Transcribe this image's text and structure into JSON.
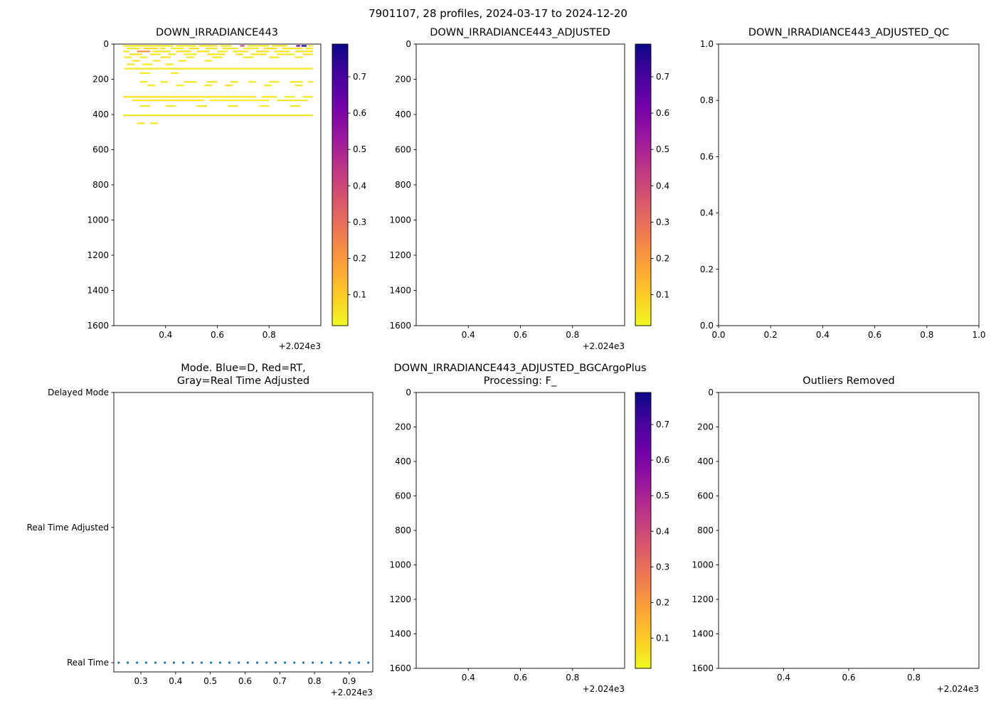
{
  "figure": {
    "title": "7901107, 28 profiles, 2024-03-17 to 2024-12-20"
  },
  "colormap": {
    "name": "plasma_r",
    "vmin": 0.015,
    "vmax": 0.79
  },
  "chart_data": [
    {
      "type": "scatter",
      "title": "DOWN_IRRADIANCE443",
      "x_axis": {
        "lim": [
          0.2,
          1.0
        ],
        "ticks": [
          0.4,
          0.6,
          0.8
        ],
        "decimals": 1,
        "offset": "+2.024e3"
      },
      "y_axis": {
        "lim": [
          0,
          1600
        ],
        "ticks": [
          0,
          200,
          400,
          600,
          800,
          1000,
          1200,
          1400,
          1600
        ],
        "decimals": 0,
        "inverted": true
      },
      "colorbar": {
        "ticks": [
          0.1,
          0.2,
          0.3,
          0.4,
          0.5,
          0.6,
          0.7
        ],
        "decimals": 1
      },
      "segments": [
        [
          0.236,
          0.43,
          10,
          0.05
        ],
        [
          0.44,
          0.52,
          10,
          0.04
        ],
        [
          0.53,
          0.6,
          10,
          0.06
        ],
        [
          0.61,
          0.655,
          10,
          0.05
        ],
        [
          0.688,
          0.705,
          10,
          0.38
        ],
        [
          0.715,
          0.8,
          10,
          0.05
        ],
        [
          0.81,
          0.87,
          10,
          0.06
        ],
        [
          0.905,
          0.92,
          10,
          0.62
        ],
        [
          0.925,
          0.945,
          10,
          0.78
        ],
        [
          0.95,
          0.97,
          10,
          0.05
        ],
        [
          0.25,
          0.3,
          25,
          0.05
        ],
        [
          0.315,
          0.37,
          25,
          0.08
        ],
        [
          0.38,
          0.4,
          25,
          0.05
        ],
        [
          0.42,
          0.47,
          25,
          0.04
        ],
        [
          0.49,
          0.53,
          25,
          0.06
        ],
        [
          0.555,
          0.6,
          25,
          0.05
        ],
        [
          0.62,
          0.68,
          25,
          0.05
        ],
        [
          0.7,
          0.76,
          25,
          0.04
        ],
        [
          0.78,
          0.83,
          25,
          0.06
        ],
        [
          0.85,
          0.93,
          25,
          0.05
        ],
        [
          0.94,
          0.97,
          25,
          0.04
        ],
        [
          0.236,
          0.26,
          42,
          0.05
        ],
        [
          0.29,
          0.34,
          42,
          0.22
        ],
        [
          0.35,
          0.42,
          42,
          0.05
        ],
        [
          0.44,
          0.5,
          42,
          0.06
        ],
        [
          0.52,
          0.57,
          42,
          0.05
        ],
        [
          0.6,
          0.64,
          42,
          0.04
        ],
        [
          0.66,
          0.72,
          42,
          0.05
        ],
        [
          0.75,
          0.8,
          42,
          0.06
        ],
        [
          0.82,
          0.88,
          42,
          0.05
        ],
        [
          0.9,
          0.97,
          42,
          0.05
        ],
        [
          0.26,
          0.31,
          58,
          0.06
        ],
        [
          0.34,
          0.38,
          58,
          0.05
        ],
        [
          0.41,
          0.44,
          58,
          0.05
        ],
        [
          0.47,
          0.52,
          58,
          0.04
        ],
        [
          0.56,
          0.63,
          58,
          0.05
        ],
        [
          0.67,
          0.7,
          58,
          0.06
        ],
        [
          0.73,
          0.79,
          58,
          0.05
        ],
        [
          0.83,
          0.9,
          58,
          0.04
        ],
        [
          0.93,
          0.97,
          58,
          0.05
        ],
        [
          0.24,
          0.27,
          75,
          0.05
        ],
        [
          0.3,
          0.33,
          75,
          0.04
        ],
        [
          0.38,
          0.42,
          75,
          0.06
        ],
        [
          0.48,
          0.51,
          75,
          0.05
        ],
        [
          0.58,
          0.62,
          75,
          0.05
        ],
        [
          0.7,
          0.74,
          75,
          0.04
        ],
        [
          0.8,
          0.84,
          75,
          0.05
        ],
        [
          0.9,
          0.93,
          75,
          0.05
        ],
        [
          0.27,
          0.3,
          95,
          0.05
        ],
        [
          0.35,
          0.38,
          95,
          0.04
        ],
        [
          0.45,
          0.48,
          95,
          0.05
        ],
        [
          0.55,
          0.58,
          95,
          0.05
        ],
        [
          0.25,
          0.28,
          115,
          0.05
        ],
        [
          0.31,
          0.35,
          115,
          0.04
        ],
        [
          0.4,
          0.43,
          115,
          0.05
        ],
        [
          0.24,
          0.97,
          140,
          0.05
        ],
        [
          0.3,
          0.34,
          165,
          0.04
        ],
        [
          0.42,
          0.45,
          165,
          0.05
        ],
        [
          0.3,
          0.33,
          215,
          0.05
        ],
        [
          0.38,
          0.41,
          215,
          0.04
        ],
        [
          0.47,
          0.52,
          215,
          0.05
        ],
        [
          0.56,
          0.6,
          215,
          0.06
        ],
        [
          0.65,
          0.68,
          215,
          0.05
        ],
        [
          0.72,
          0.75,
          215,
          0.04
        ],
        [
          0.8,
          0.84,
          215,
          0.05
        ],
        [
          0.88,
          0.93,
          215,
          0.05
        ],
        [
          0.95,
          0.97,
          215,
          0.04
        ],
        [
          0.33,
          0.36,
          235,
          0.05
        ],
        [
          0.44,
          0.47,
          235,
          0.04
        ],
        [
          0.55,
          0.58,
          235,
          0.05
        ],
        [
          0.63,
          0.66,
          235,
          0.05
        ],
        [
          0.78,
          0.81,
          235,
          0.04
        ],
        [
          0.9,
          0.93,
          235,
          0.05
        ],
        [
          0.236,
          0.75,
          300,
          0.05
        ],
        [
          0.77,
          0.83,
          300,
          0.05
        ],
        [
          0.86,
          0.9,
          300,
          0.04
        ],
        [
          0.93,
          0.97,
          300,
          0.05
        ],
        [
          0.27,
          0.55,
          320,
          0.05
        ],
        [
          0.57,
          0.8,
          320,
          0.04
        ],
        [
          0.83,
          0.95,
          320,
          0.05
        ],
        [
          0.3,
          0.34,
          352,
          0.05
        ],
        [
          0.4,
          0.44,
          352,
          0.04
        ],
        [
          0.52,
          0.56,
          352,
          0.05
        ],
        [
          0.64,
          0.68,
          352,
          0.05
        ],
        [
          0.76,
          0.8,
          352,
          0.04
        ],
        [
          0.88,
          0.92,
          352,
          0.05
        ],
        [
          0.236,
          0.97,
          405,
          0.05
        ],
        [
          0.29,
          0.32,
          450,
          0.05
        ],
        [
          0.34,
          0.37,
          450,
          0.04
        ]
      ]
    },
    {
      "type": "scatter",
      "title": "DOWN_IRRADIANCE443_ADJUSTED",
      "x_axis": {
        "lim": [
          0.2,
          1.0
        ],
        "ticks": [
          0.4,
          0.6,
          0.8
        ],
        "decimals": 1,
        "offset": "+2.024e3"
      },
      "y_axis": {
        "lim": [
          0,
          1600
        ],
        "ticks": [
          0,
          200,
          400,
          600,
          800,
          1000,
          1200,
          1400,
          1600
        ],
        "decimals": 0,
        "inverted": true
      },
      "colorbar": {
        "ticks": [
          0.1,
          0.2,
          0.3,
          0.4,
          0.5,
          0.6,
          0.7
        ],
        "decimals": 1
      },
      "segments": []
    },
    {
      "type": "scatter",
      "title": "DOWN_IRRADIANCE443_ADJUSTED_QC",
      "x_axis": {
        "lim": [
          0.0,
          1.0
        ],
        "ticks": [
          0.0,
          0.2,
          0.4,
          0.6,
          0.8,
          1.0
        ],
        "decimals": 1
      },
      "y_axis": {
        "lim": [
          0.0,
          1.0
        ],
        "ticks": [
          0.0,
          0.2,
          0.4,
          0.6,
          0.8,
          1.0
        ],
        "decimals": 1,
        "inverted": false
      },
      "segments": []
    },
    {
      "type": "scatter",
      "title_line1": "Mode. Blue=D, Red=RT,",
      "title_line2": "Gray=Real Time Adjusted",
      "x_axis": {
        "lim": [
          0.222,
          0.968
        ],
        "ticks": [
          0.3,
          0.4,
          0.5,
          0.6,
          0.7,
          0.8,
          0.9
        ],
        "decimals": 1,
        "offset": "+2.024e3"
      },
      "y_axis": {
        "categories": [
          {
            "label": "Delayed Mode",
            "f": 0.0
          },
          {
            "label": "Real Time Adjusted",
            "f": 0.483
          },
          {
            "label": "Real Time",
            "f": 0.967
          }
        ]
      },
      "points": {
        "marker_color": "#1f77b4",
        "category": "Real Time",
        "category_f": 0.967,
        "x": [
          0.236,
          0.262,
          0.289,
          0.315,
          0.342,
          0.369,
          0.395,
          0.422,
          0.449,
          0.475,
          0.502,
          0.528,
          0.555,
          0.582,
          0.608,
          0.635,
          0.662,
          0.688,
          0.715,
          0.742,
          0.768,
          0.795,
          0.821,
          0.848,
          0.875,
          0.901,
          0.928,
          0.955
        ]
      }
    },
    {
      "type": "scatter",
      "title_line1": "DOWN_IRRADIANCE443_ADJUSTED_BGCArgoPlus",
      "title_line2": "Processing: F_",
      "x_axis": {
        "lim": [
          0.2,
          1.0
        ],
        "ticks": [
          0.4,
          0.6,
          0.8
        ],
        "decimals": 1,
        "offset": "+2.024e3"
      },
      "y_axis": {
        "lim": [
          0,
          1600
        ],
        "ticks": [
          0,
          200,
          400,
          600,
          800,
          1000,
          1200,
          1400,
          1600
        ],
        "decimals": 0,
        "inverted": true
      },
      "colorbar": {
        "ticks": [
          0.1,
          0.2,
          0.3,
          0.4,
          0.5,
          0.6,
          0.7
        ],
        "decimals": 1
      },
      "segments": []
    },
    {
      "type": "scatter",
      "title": "Outliers Removed",
      "x_axis": {
        "lim": [
          0.2,
          1.0
        ],
        "ticks": [
          0.4,
          0.6,
          0.8
        ],
        "decimals": 1,
        "offset": "+2.024e3"
      },
      "y_axis": {
        "lim": [
          0,
          1600
        ],
        "ticks": [
          0,
          200,
          400,
          600,
          800,
          1000,
          1200,
          1400,
          1600
        ],
        "decimals": 0,
        "inverted": true
      },
      "segments": []
    }
  ]
}
